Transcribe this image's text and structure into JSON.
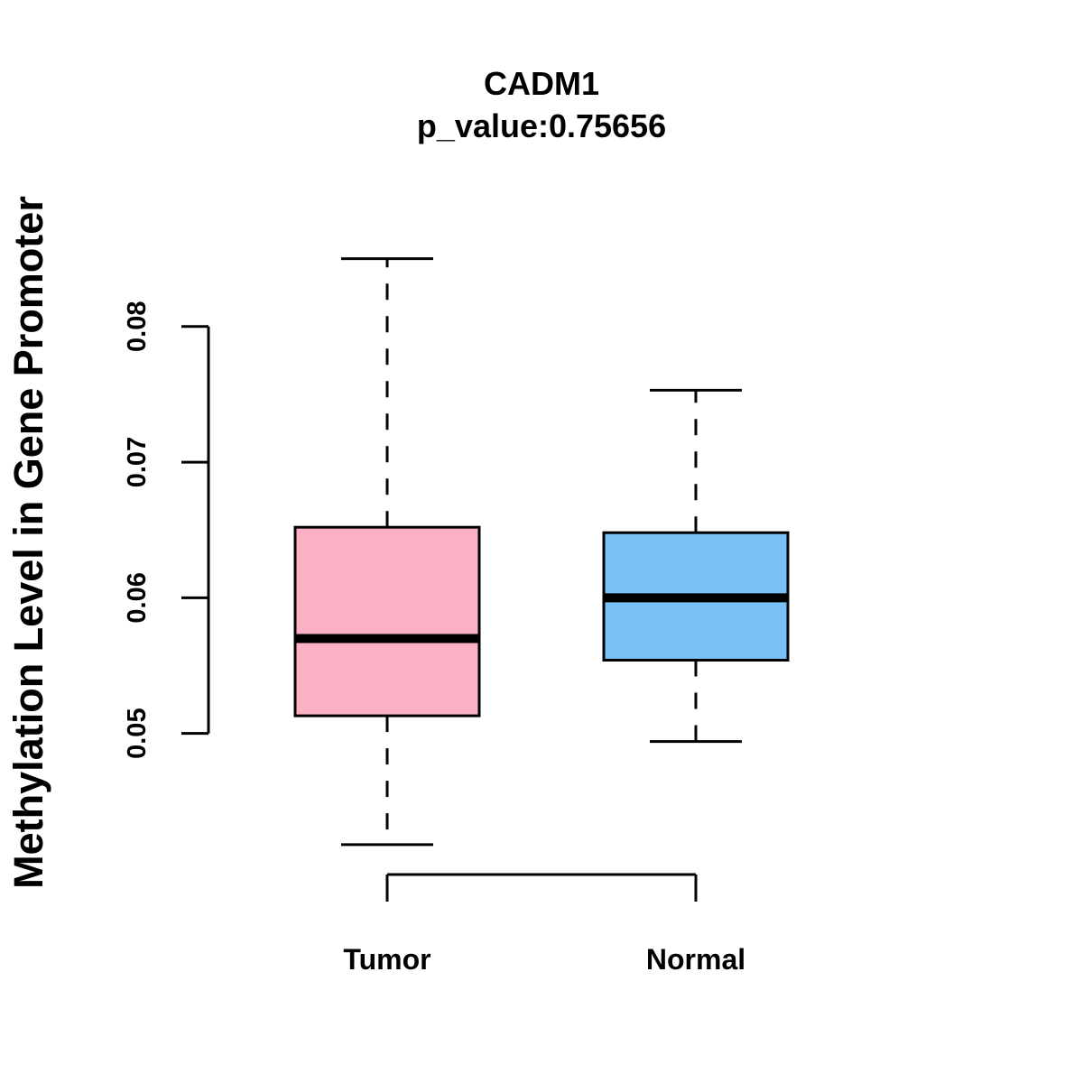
{
  "chart_data": {
    "type": "boxplot",
    "title": "CADM1",
    "subtitle": "p_value:0.75656",
    "xlabel": "",
    "ylabel": "Methylation Level in Gene Promoter",
    "yticks": [
      0.05,
      0.06,
      0.07,
      0.08
    ],
    "ytick_labels": [
      "0.05",
      "0.06",
      "0.07",
      "0.08"
    ],
    "ylim": [
      0.0384,
      0.0891
    ],
    "grid": false,
    "categories": [
      "Tumor",
      "Normal"
    ],
    "boxes": [
      {
        "name": "Tumor",
        "whisker_low": 0.0418,
        "q1": 0.0513,
        "median": 0.057,
        "q3": 0.0652,
        "whisker_high": 0.085,
        "color": "#FBB1C3"
      },
      {
        "name": "Normal",
        "whisker_low": 0.0494,
        "q1": 0.0554,
        "median": 0.06,
        "q3": 0.0648,
        "whisker_high": 0.0753,
        "color": "#79C2F8"
      }
    ]
  }
}
